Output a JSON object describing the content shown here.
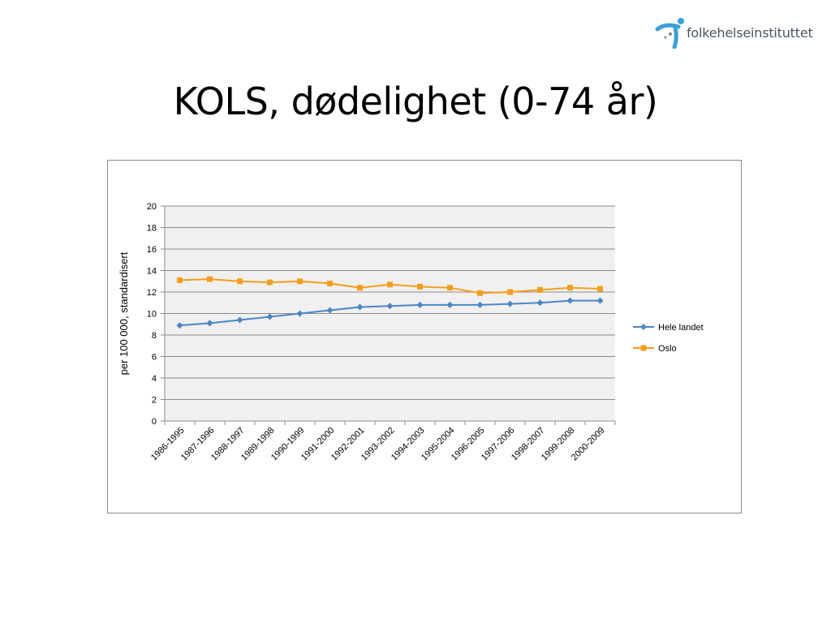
{
  "logo": {
    "text": "folkehelseinstituttet",
    "icon": "person-figure-icon",
    "colors": {
      "primary": "#3aa0d8",
      "accent": "#7f8a94"
    }
  },
  "slide": {
    "title": "KOLS, dødelighet (0-74 år)"
  },
  "chart_data": {
    "type": "line",
    "title": "",
    "xlabel": "",
    "ylabel": "per 100 000, standardisert",
    "ylim": [
      0,
      20
    ],
    "yticks": [
      0,
      2,
      4,
      6,
      8,
      10,
      12,
      14,
      16,
      18,
      20
    ],
    "grid": true,
    "legend_position": "right",
    "categories": [
      "1986-1995",
      "1987-1996",
      "1988-1997",
      "1989-1998",
      "1990-1999",
      "1991-2000",
      "1992-2001",
      "1993-2002",
      "1994-2003",
      "1995-2004",
      "1996-2005",
      "1997-2006",
      "1998-2007",
      "1999-2008",
      "2000-2009"
    ],
    "series": [
      {
        "name": "Hele landet",
        "color": "#4a86c8",
        "marker": "diamond",
        "values": [
          8.9,
          9.1,
          9.4,
          9.7,
          10.0,
          10.3,
          10.6,
          10.7,
          10.8,
          10.8,
          10.8,
          10.9,
          11.0,
          11.2,
          11.2
        ]
      },
      {
        "name": "Oslo",
        "color": "#f59e1b",
        "marker": "square",
        "values": [
          13.1,
          13.2,
          13.0,
          12.9,
          13.0,
          12.8,
          12.4,
          12.7,
          12.5,
          12.4,
          11.9,
          12.0,
          12.2,
          12.4,
          12.3
        ]
      }
    ]
  }
}
